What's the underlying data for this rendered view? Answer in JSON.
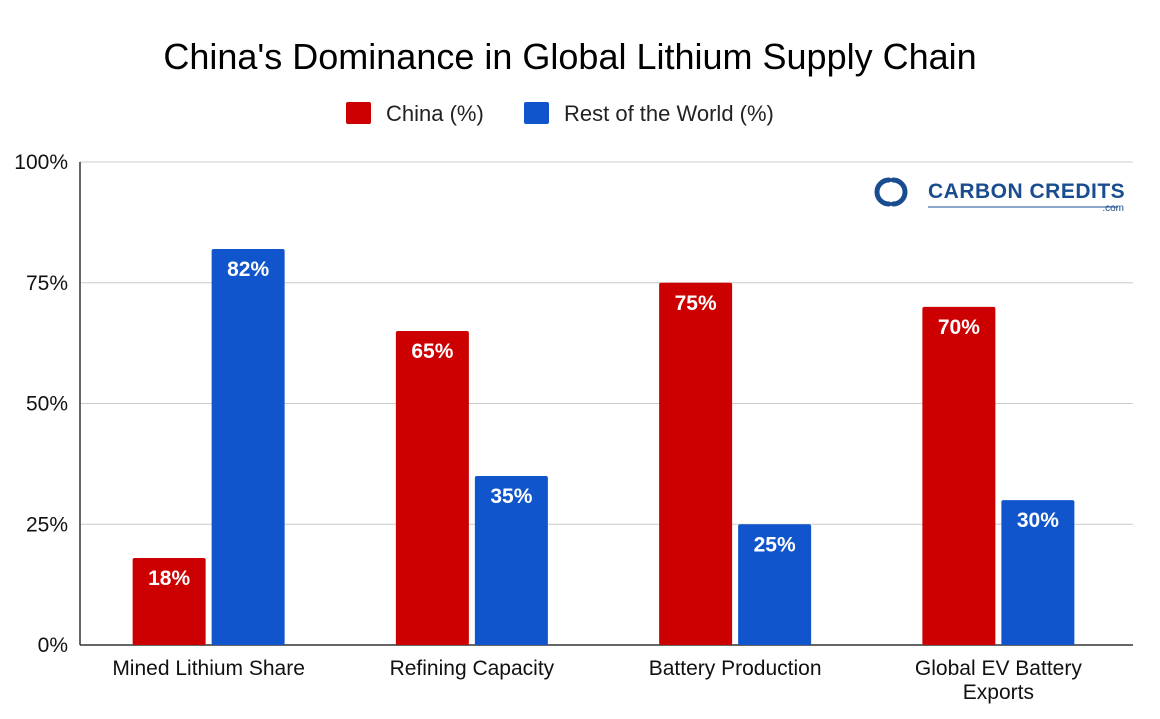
{
  "chart_data": {
    "type": "bar",
    "title": "China's Dominance in Global Lithium Supply Chain",
    "xlabel": "",
    "ylabel": "",
    "categories": [
      [
        "Mined Lithium Share"
      ],
      [
        "Refining Capacity"
      ],
      [
        "Battery Production"
      ],
      [
        "Global EV Battery",
        "Exports"
      ]
    ],
    "series": [
      {
        "name": "China (%)",
        "color": "#cc0000",
        "values": [
          18,
          65,
          75,
          70
        ],
        "labels": [
          "18%",
          "65%",
          "75%",
          "70%"
        ]
      },
      {
        "name": "Rest of the World (%)",
        "color": "#1155cc",
        "values": [
          82,
          35,
          25,
          30
        ],
        "labels": [
          "82%",
          "35%",
          "25%",
          "30%"
        ]
      }
    ],
    "ylim": [
      0,
      100
    ],
    "yticks": [
      0,
      25,
      50,
      75,
      100
    ],
    "ytick_labels": [
      "0%",
      "25%",
      "50%",
      "75%",
      "100%"
    ],
    "grid": true,
    "legend_position": "top-center"
  },
  "watermark": {
    "text": "CARBON CREDITS",
    "sub": ".com",
    "icon": "carbon-credits-logo-icon",
    "color": "#1a4d8f"
  }
}
